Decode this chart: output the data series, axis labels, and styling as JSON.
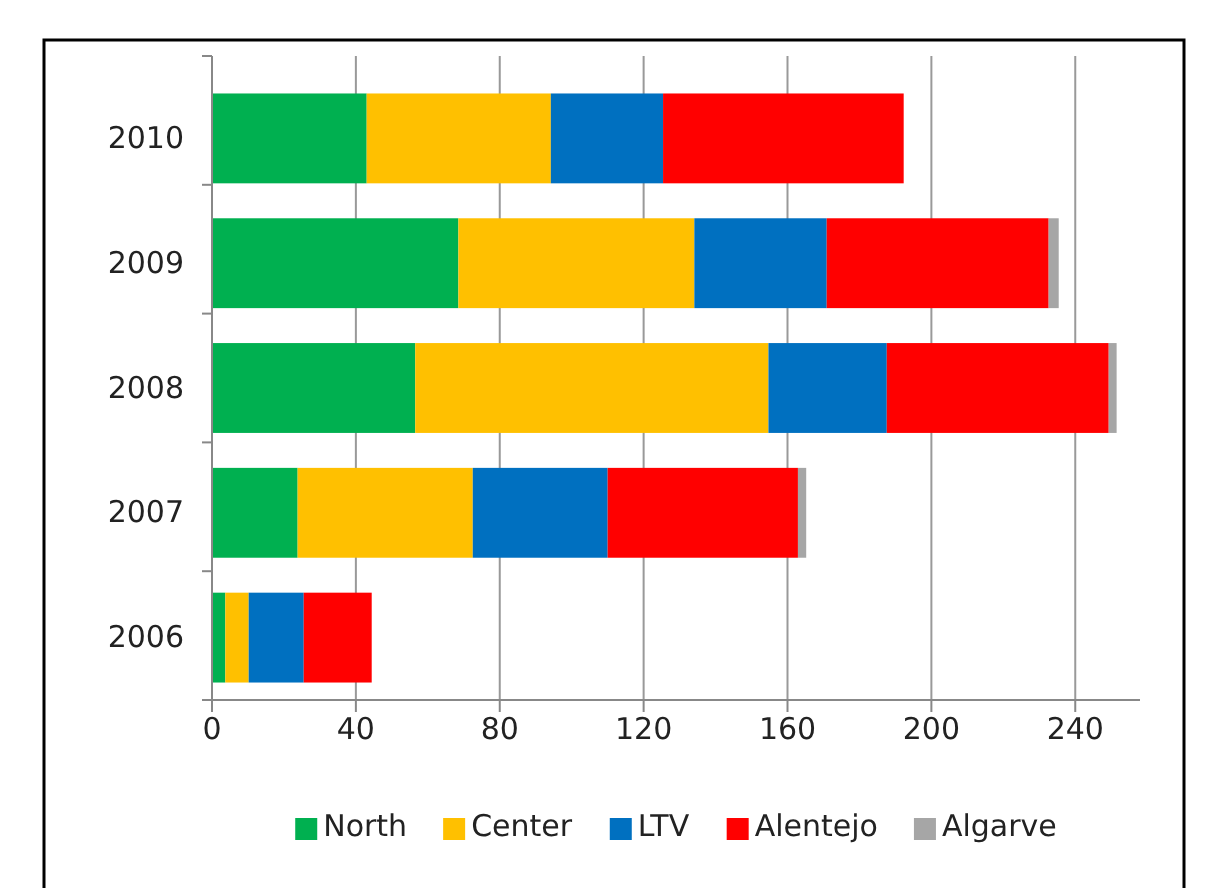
{
  "chart_data": {
    "type": "bar",
    "orientation": "horizontal",
    "stacked": true,
    "categories": [
      "2010",
      "2009",
      "2008",
      "2007",
      "2006"
    ],
    "series": [
      {
        "name": "North",
        "color": "#00b050",
        "values": [
          43,
          68.5,
          56.5,
          23.8,
          3.7
        ]
      },
      {
        "name": "Center",
        "color": "#ffc000",
        "values": [
          51.2,
          65.6,
          98.2,
          48.7,
          6.5
        ]
      },
      {
        "name": "LTV",
        "color": "#0070c0",
        "values": [
          31.2,
          36.8,
          32.9,
          37.5,
          15.3
        ]
      },
      {
        "name": "Alentejo",
        "color": "#ff0000",
        "values": [
          66.9,
          61.7,
          61.7,
          52.9,
          18.9
        ]
      },
      {
        "name": "Algarve",
        "color": "#a6a6a6",
        "values": [
          0,
          2.8,
          2.2,
          2.3,
          0
        ]
      }
    ],
    "xlim": [
      0,
      258
    ],
    "xticks": [
      0,
      40,
      80,
      120,
      160,
      200,
      240
    ],
    "grid": "x",
    "legend": "bottom"
  }
}
